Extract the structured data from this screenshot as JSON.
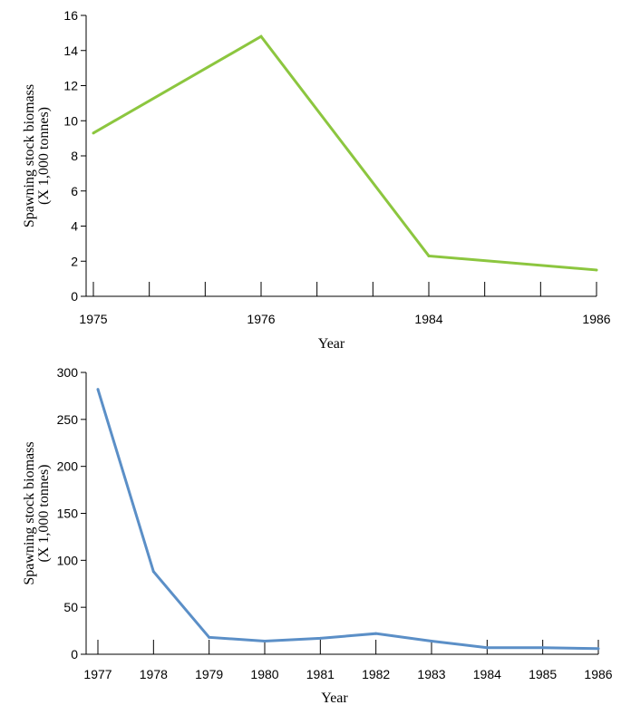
{
  "chart_data": [
    {
      "type": "line",
      "title": "",
      "xlabel": "Year",
      "ylabel_line1": "Spawning stock biomass",
      "ylabel_line2": "(X 1,000 tonnes)",
      "ylim": [
        0,
        16
      ],
      "yticks": [
        0,
        2,
        4,
        6,
        8,
        10,
        12,
        14,
        16
      ],
      "categories": [
        "1975",
        "1976",
        "1984",
        "1986"
      ],
      "x_tick_count": 10,
      "series": [
        {
          "name": "",
          "color": "#8cc63f",
          "values": [
            9.3,
            14.8,
            2.3,
            1.5
          ]
        }
      ],
      "grid": false,
      "legend": "none"
    },
    {
      "type": "line",
      "title": "",
      "xlabel": "Year",
      "ylabel_line1": "Spawning stock biomass",
      "ylabel_line2": "(X 1,000 tonnes)",
      "ylim": [
        0,
        300
      ],
      "yticks": [
        0,
        50,
        100,
        150,
        200,
        250,
        300
      ],
      "categories": [
        "1977",
        "1978",
        "1979",
        "1980",
        "1981",
        "1982",
        "1983",
        "1984",
        "1985",
        "1986"
      ],
      "series": [
        {
          "name": "",
          "color": "#5b8fc7",
          "values": [
            282,
            88,
            18,
            14,
            17,
            22,
            14,
            7,
            7,
            6
          ]
        }
      ],
      "grid": false,
      "legend": "none"
    }
  ]
}
